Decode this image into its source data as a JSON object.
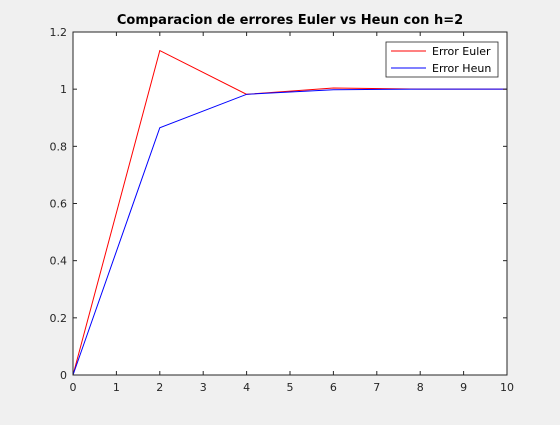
{
  "chart_data": {
    "type": "line",
    "title": "Comparacion de errores Euler vs Heun con h=2",
    "xlabel": "",
    "ylabel": "",
    "xlim": [
      0,
      10
    ],
    "ylim": [
      0,
      1.2
    ],
    "xticks": [
      "0",
      "1",
      "2",
      "3",
      "4",
      "5",
      "6",
      "7",
      "8",
      "9",
      "10"
    ],
    "yticks": [
      "0",
      "0.2",
      "0.4",
      "0.6",
      "0.8",
      "1",
      "1.2"
    ],
    "grid": false,
    "legend_position": "top-right",
    "series": [
      {
        "name": "Error Euler",
        "color": "#ff0000",
        "x": [
          0,
          2,
          4,
          6,
          8,
          10
        ],
        "y": [
          0,
          1.135,
          0.982,
          1.004,
          1.0,
          1.0
        ]
      },
      {
        "name": "Error Heun",
        "color": "#0000ff",
        "x": [
          0,
          2,
          4,
          6,
          8,
          10
        ],
        "y": [
          0,
          0.865,
          0.982,
          0.998,
          1.0,
          1.0
        ]
      }
    ]
  }
}
